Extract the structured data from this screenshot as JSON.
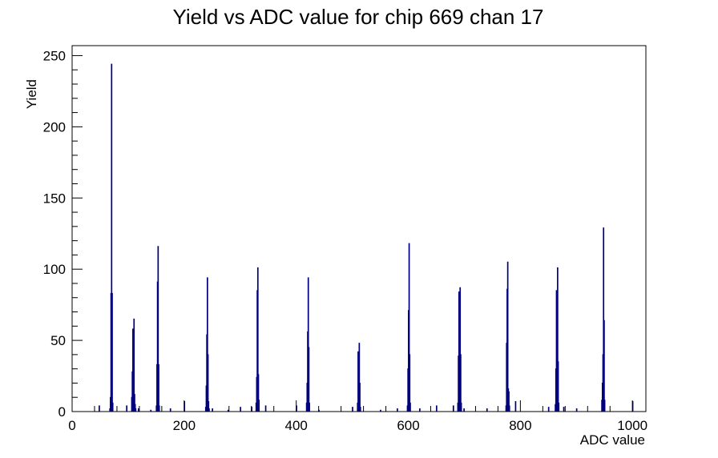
{
  "chart_data": {
    "type": "histogram",
    "title": "Yield vs ADC value for chip 669 chan 17",
    "xlabel": "ADC value",
    "ylabel": "Yield",
    "xlim": [
      0,
      1024
    ],
    "ylim": [
      0,
      257
    ],
    "x_ticks": [
      0,
      200,
      400,
      600,
      800,
      1000
    ],
    "x_tick_labels": [
      "0",
      "200",
      "400",
      "600",
      "800",
      "1000"
    ],
    "y_ticks": [
      0,
      50,
      100,
      150,
      200,
      250
    ],
    "y_tick_labels": [
      "0",
      "50",
      "100",
      "150",
      "200",
      "250"
    ],
    "line_color": "#00007f",
    "frame_color": "#000000",
    "grid": false,
    "legend": "none",
    "bins": [
      {
        "x": 48,
        "y": 4
      },
      {
        "x": 67,
        "y": 2
      },
      {
        "x": 68,
        "y": 10
      },
      {
        "x": 69,
        "y": 83
      },
      {
        "x": 70,
        "y": 244
      },
      {
        "x": 71,
        "y": 83
      },
      {
        "x": 72,
        "y": 6
      },
      {
        "x": 97,
        "y": 4
      },
      {
        "x": 106,
        "y": 10
      },
      {
        "x": 107,
        "y": 28
      },
      {
        "x": 108,
        "y": 58
      },
      {
        "x": 109,
        "y": 35
      },
      {
        "x": 110,
        "y": 65
      },
      {
        "x": 111,
        "y": 12
      },
      {
        "x": 112,
        "y": 5
      },
      {
        "x": 113,
        "y": 2
      },
      {
        "x": 118,
        "y": 2
      },
      {
        "x": 140,
        "y": 1
      },
      {
        "x": 150,
        "y": 4
      },
      {
        "x": 151,
        "y": 33
      },
      {
        "x": 152,
        "y": 91
      },
      {
        "x": 153,
        "y": 116
      },
      {
        "x": 154,
        "y": 33
      },
      {
        "x": 155,
        "y": 4
      },
      {
        "x": 175,
        "y": 2
      },
      {
        "x": 200,
        "y": 7
      },
      {
        "x": 238,
        "y": 3
      },
      {
        "x": 239,
        "y": 18
      },
      {
        "x": 240,
        "y": 54
      },
      {
        "x": 241,
        "y": 94
      },
      {
        "x": 242,
        "y": 40
      },
      {
        "x": 243,
        "y": 7
      },
      {
        "x": 244,
        "y": 2
      },
      {
        "x": 250,
        "y": 2
      },
      {
        "x": 278,
        "y": 1
      },
      {
        "x": 300,
        "y": 3
      },
      {
        "x": 320,
        "y": 3
      },
      {
        "x": 328,
        "y": 6
      },
      {
        "x": 329,
        "y": 24
      },
      {
        "x": 330,
        "y": 85
      },
      {
        "x": 331,
        "y": 101
      },
      {
        "x": 332,
        "y": 26
      },
      {
        "x": 333,
        "y": 8
      },
      {
        "x": 345,
        "y": 4
      },
      {
        "x": 400,
        "y": 4
      },
      {
        "x": 418,
        "y": 6
      },
      {
        "x": 419,
        "y": 20
      },
      {
        "x": 420,
        "y": 56
      },
      {
        "x": 421,
        "y": 94
      },
      {
        "x": 422,
        "y": 45
      },
      {
        "x": 423,
        "y": 6
      },
      {
        "x": 440,
        "y": 1
      },
      {
        "x": 500,
        "y": 3
      },
      {
        "x": 509,
        "y": 6
      },
      {
        "x": 510,
        "y": 42
      },
      {
        "x": 511,
        "y": 40
      },
      {
        "x": 512,
        "y": 48
      },
      {
        "x": 513,
        "y": 20
      },
      {
        "x": 514,
        "y": 3
      },
      {
        "x": 550,
        "y": 1
      },
      {
        "x": 580,
        "y": 2
      },
      {
        "x": 598,
        "y": 4
      },
      {
        "x": 599,
        "y": 30
      },
      {
        "x": 600,
        "y": 71
      },
      {
        "x": 601,
        "y": 118
      },
      {
        "x": 602,
        "y": 40
      },
      {
        "x": 603,
        "y": 6
      },
      {
        "x": 620,
        "y": 2
      },
      {
        "x": 650,
        "y": 4
      },
      {
        "x": 680,
        "y": 4
      },
      {
        "x": 688,
        "y": 6
      },
      {
        "x": 689,
        "y": 39
      },
      {
        "x": 690,
        "y": 84
      },
      {
        "x": 691,
        "y": 76
      },
      {
        "x": 692,
        "y": 87
      },
      {
        "x": 693,
        "y": 40
      },
      {
        "x": 694,
        "y": 6
      },
      {
        "x": 699,
        "y": 2
      },
      {
        "x": 740,
        "y": 2
      },
      {
        "x": 774,
        "y": 4
      },
      {
        "x": 775,
        "y": 48
      },
      {
        "x": 776,
        "y": 86
      },
      {
        "x": 777,
        "y": 105
      },
      {
        "x": 778,
        "y": 16
      },
      {
        "x": 779,
        "y": 14
      },
      {
        "x": 780,
        "y": 4
      },
      {
        "x": 791,
        "y": 7
      },
      {
        "x": 850,
        "y": 3
      },
      {
        "x": 862,
        "y": 5
      },
      {
        "x": 863,
        "y": 30
      },
      {
        "x": 864,
        "y": 85
      },
      {
        "x": 865,
        "y": 75
      },
      {
        "x": 866,
        "y": 101
      },
      {
        "x": 867,
        "y": 35
      },
      {
        "x": 868,
        "y": 6
      },
      {
        "x": 877,
        "y": 3
      },
      {
        "x": 900,
        "y": 2
      },
      {
        "x": 945,
        "y": 8
      },
      {
        "x": 946,
        "y": 20
      },
      {
        "x": 947,
        "y": 40
      },
      {
        "x": 948,
        "y": 129
      },
      {
        "x": 949,
        "y": 64
      },
      {
        "x": 950,
        "y": 8
      },
      {
        "x": 1000,
        "y": 7
      }
    ]
  }
}
